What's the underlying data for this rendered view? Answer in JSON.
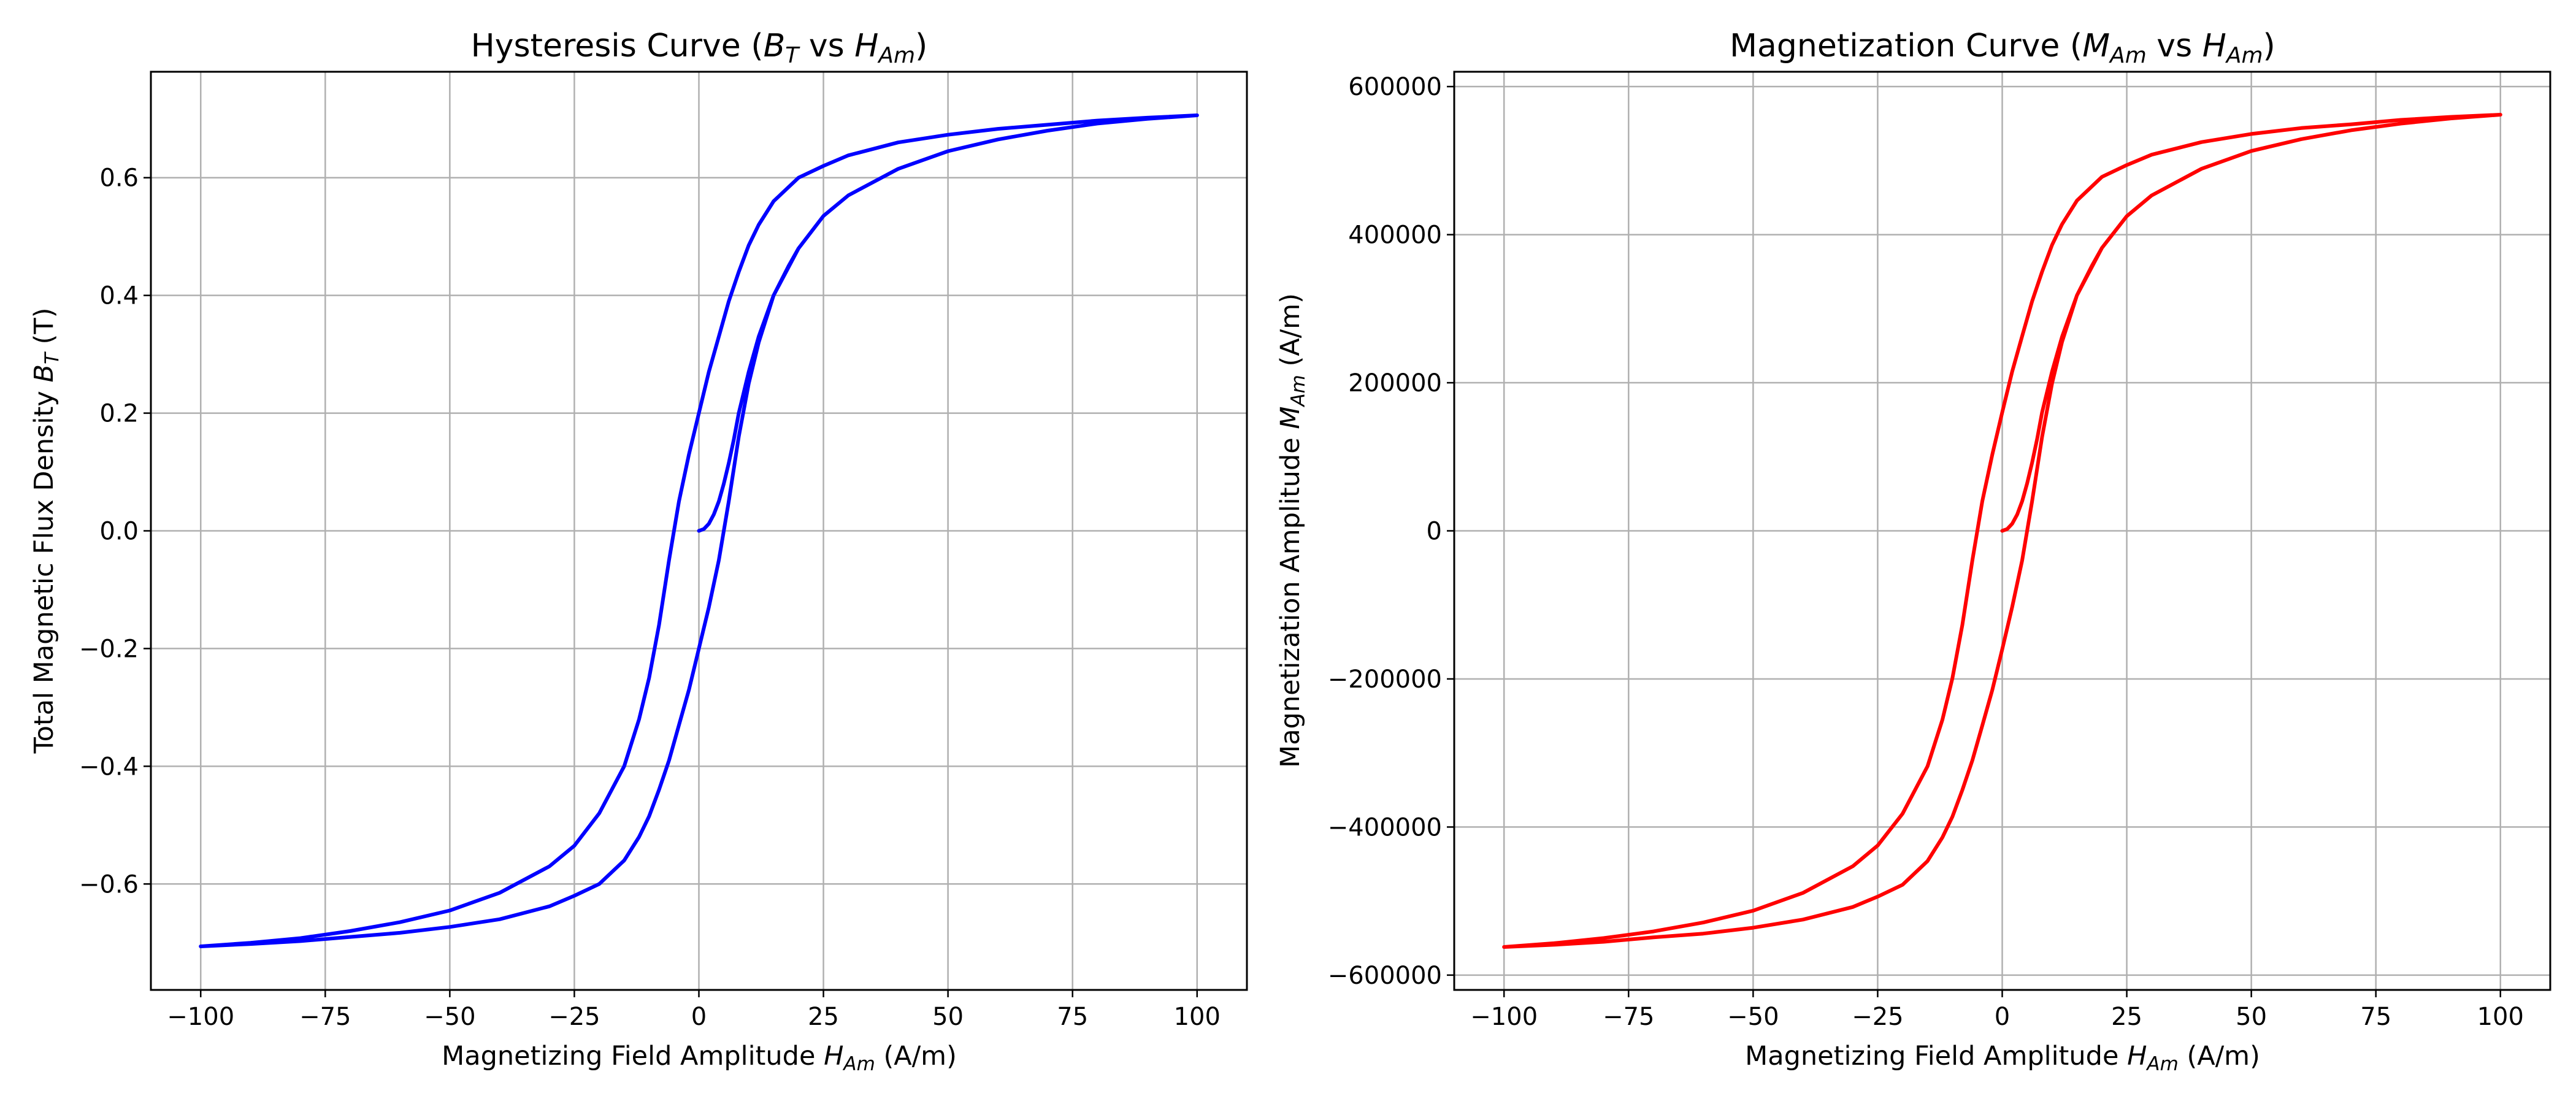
{
  "figure": {
    "background": "#ffffff",
    "grid_color": "#b0b0b0"
  },
  "chart_data": [
    {
      "type": "line",
      "title": {
        "text": "Hysteresis Curve (",
        "math1": "B",
        "math1_sub": "T",
        "mid": " vs ",
        "math2": "H",
        "math2_sub": "Am",
        "end": ")"
      },
      "xlabel": {
        "text": "Magnetizing Field Amplitude ",
        "math": "H",
        "math_sub": "Am",
        "end": " (A/m)"
      },
      "ylabel": {
        "text": "Total Magnetic Flux Density ",
        "math": "B",
        "math_sub": "T",
        "end": " (T)"
      },
      "xlim": [
        -110,
        110
      ],
      "ylim": [
        -0.78,
        0.78
      ],
      "xticks": [
        -100,
        -75,
        -50,
        -25,
        0,
        25,
        50,
        75,
        100
      ],
      "xtick_labels": [
        "−100",
        "−75",
        "−50",
        "−25",
        "0",
        "25",
        "50",
        "75",
        "100"
      ],
      "yticks": [
        -0.6,
        -0.4,
        -0.2,
        0.0,
        0.2,
        0.4,
        0.6
      ],
      "ytick_labels": [
        "−0.6",
        "−0.4",
        "−0.2",
        "0.0",
        "0.2",
        "0.4",
        "0.6"
      ],
      "grid": true,
      "series": [
        {
          "color": "#0000ff",
          "x": [
            0,
            1,
            2,
            3,
            4,
            5,
            6,
            7,
            8,
            10,
            12,
            15,
            18,
            20,
            25,
            30,
            40,
            50,
            60,
            70,
            80,
            90,
            100,
            90,
            80,
            70,
            60,
            50,
            40,
            30,
            25,
            20,
            15,
            12,
            10,
            8,
            6,
            4,
            2,
            0,
            -2,
            -4,
            -6,
            -8,
            -10,
            -12,
            -15,
            -20,
            -25,
            -30,
            -40,
            -50,
            -60,
            -70,
            -80,
            -90,
            -100,
            -90,
            -80,
            -70,
            -60,
            -50,
            -40,
            -30,
            -25,
            -20,
            -15,
            -12,
            -10,
            -8,
            -6,
            -4,
            -2,
            0,
            2,
            4,
            6,
            8,
            10,
            12,
            15,
            20,
            25,
            30,
            40,
            50,
            60,
            70,
            80,
            90,
            100
          ],
          "y": [
            0.0,
            0.003,
            0.012,
            0.028,
            0.05,
            0.08,
            0.115,
            0.155,
            0.2,
            0.27,
            0.33,
            0.4,
            0.45,
            0.48,
            0.535,
            0.57,
            0.615,
            0.645,
            0.665,
            0.68,
            0.692,
            0.7,
            0.706,
            0.702,
            0.697,
            0.69,
            0.683,
            0.673,
            0.66,
            0.638,
            0.62,
            0.6,
            0.56,
            0.52,
            0.485,
            0.44,
            0.39,
            0.33,
            0.27,
            0.2,
            0.13,
            0.05,
            -0.05,
            -0.16,
            -0.25,
            -0.32,
            -0.4,
            -0.48,
            -0.535,
            -0.57,
            -0.615,
            -0.645,
            -0.665,
            -0.68,
            -0.692,
            -0.7,
            -0.706,
            -0.702,
            -0.697,
            -0.69,
            -0.683,
            -0.673,
            -0.66,
            -0.638,
            -0.62,
            -0.6,
            -0.56,
            -0.52,
            -0.485,
            -0.44,
            -0.39,
            -0.33,
            -0.27,
            -0.2,
            -0.13,
            -0.05,
            0.05,
            0.16,
            0.25,
            0.32,
            0.4,
            0.48,
            0.535,
            0.57,
            0.615,
            0.645,
            0.665,
            0.68,
            0.692,
            0.7,
            0.706
          ]
        }
      ]
    },
    {
      "type": "line",
      "title": {
        "text": "Magnetization Curve (",
        "math1": "M",
        "math1_sub": "Am",
        "mid": " vs ",
        "math2": "H",
        "math2_sub": "Am",
        "end": ")"
      },
      "xlabel": {
        "text": "Magnetizing Field Amplitude ",
        "math": "H",
        "math_sub": "Am",
        "end": " (A/m)"
      },
      "ylabel": {
        "text": "Magnetization Amplitude ",
        "math": "M",
        "math_sub": "Am",
        "end": " (A/m)"
      },
      "xlim": [
        -110,
        110
      ],
      "ylim": [
        -620000,
        620000
      ],
      "xticks": [
        -100,
        -75,
        -50,
        -25,
        0,
        25,
        50,
        75,
        100
      ],
      "xtick_labels": [
        "−100",
        "−75",
        "−50",
        "−25",
        "0",
        "25",
        "50",
        "75",
        "100"
      ],
      "yticks": [
        -600000,
        -400000,
        -200000,
        0,
        200000,
        400000,
        600000
      ],
      "ytick_labels": [
        "−600000",
        "−400000",
        "−200000",
        "0",
        "200000",
        "400000",
        "600000"
      ],
      "grid": true,
      "series": [
        {
          "color": "#ff0000",
          "x": [
            0,
            1,
            2,
            3,
            4,
            5,
            6,
            7,
            8,
            10,
            12,
            15,
            18,
            20,
            25,
            30,
            40,
            50,
            60,
            70,
            80,
            90,
            100,
            90,
            80,
            70,
            60,
            50,
            40,
            30,
            25,
            20,
            15,
            12,
            10,
            8,
            6,
            4,
            2,
            0,
            -2,
            -4,
            -6,
            -8,
            -10,
            -12,
            -15,
            -20,
            -25,
            -30,
            -40,
            -50,
            -60,
            -70,
            -80,
            -90,
            -100,
            -90,
            -80,
            -70,
            -60,
            -50,
            -40,
            -30,
            -25,
            -20,
            -15,
            -12,
            -10,
            -8,
            -6,
            -4,
            -2,
            0,
            2,
            4,
            6,
            8,
            10,
            12,
            15,
            20,
            25,
            30,
            40,
            50,
            60,
            70,
            80,
            90,
            100
          ],
          "y": [
            0,
            2400,
            9500,
            22000,
            40000,
            64000,
            92000,
            124000,
            160000,
            215000,
            262000,
            318000,
            358000,
            382000,
            425000,
            453000,
            489000,
            513000,
            529000,
            541000,
            550000,
            557000,
            562000,
            559000,
            555000,
            549000,
            544000,
            536000,
            525000,
            508000,
            494000,
            478000,
            446000,
            414000,
            386000,
            350000,
            310000,
            263000,
            215000,
            160000,
            103000,
            40000,
            -40000,
            -127000,
            -199000,
            -255000,
            -318000,
            -382000,
            -425000,
            -453000,
            -489000,
            -513000,
            -529000,
            -541000,
            -550000,
            -557000,
            -562000,
            -559000,
            -555000,
            -549000,
            -544000,
            -536000,
            -525000,
            -508000,
            -494000,
            -478000,
            -446000,
            -414000,
            -386000,
            -350000,
            -310000,
            -263000,
            -215000,
            -160000,
            -103000,
            -40000,
            40000,
            127000,
            199000,
            255000,
            318000,
            382000,
            425000,
            453000,
            489000,
            513000,
            529000,
            541000,
            550000,
            557000,
            562000
          ]
        }
      ]
    }
  ]
}
